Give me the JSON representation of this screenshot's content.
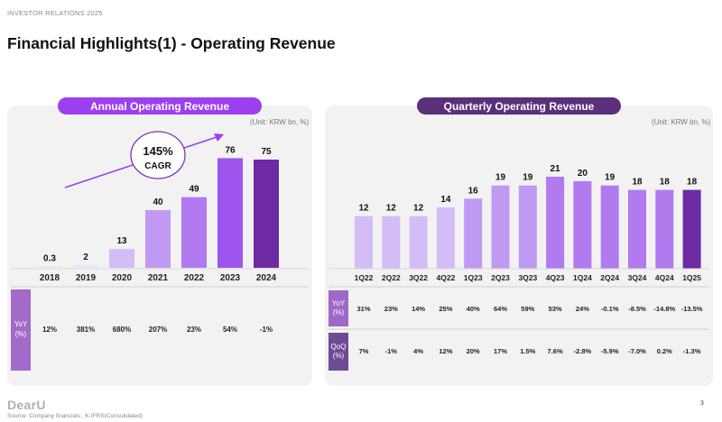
{
  "header": {
    "tag": "INVESTOR RELATIONS 2025",
    "title": "Financial Highlights(1) - Operating Revenue"
  },
  "annual": {
    "pill": "Annual Operating Revenue",
    "unit": "(Unit: KRW bn, %)",
    "cagr_value": "145%",
    "cagr_label": "CAGR",
    "row_label": "YoY\n(%)"
  },
  "quarterly": {
    "pill": "Quarterly Operating Revenue",
    "unit": "(Unit: KRW bn, %)",
    "yoy_label": "YoY\n(%)",
    "qoq_label": "QoQ\n(%)"
  },
  "footer": {
    "logo": "DearU",
    "source": "Source: Company financials , K-IFRS(Consolidated)",
    "page": "3"
  },
  "colors": {
    "light1": "#ece3fb",
    "light2": "#d4bdf7",
    "mid1": "#c09af2",
    "mid2": "#b17aef",
    "strong": "#9d55ee",
    "dark": "#6d2aa3",
    "rowlabel_left": "#a26ac9",
    "rowlabel_yoy": "#9f68c8",
    "rowlabel_qoq": "#6f4a95",
    "arrow": "#9b3ff0"
  },
  "chart_data": [
    {
      "type": "bar",
      "title": "Annual Operating Revenue",
      "unit": "KRW bn",
      "categories": [
        "2018",
        "2019",
        "2020",
        "2021",
        "2022",
        "2023",
        "2024"
      ],
      "values": [
        0.3,
        2,
        13,
        40,
        49,
        76,
        75
      ],
      "value_labels": [
        "0.3",
        "2",
        "13",
        "40",
        "49",
        "76",
        "75"
      ],
      "yoy_pct": [
        "12%",
        "381%",
        "680%",
        "207%",
        "23%",
        "54%",
        "-1%"
      ],
      "ylim": [
        0,
        80
      ]
    },
    {
      "type": "bar",
      "title": "Quarterly Operating Revenue",
      "unit": "KRW bn",
      "categories": [
        "1Q22",
        "2Q22",
        "3Q22",
        "4Q22",
        "1Q23",
        "2Q23",
        "3Q23",
        "4Q23",
        "1Q24",
        "2Q24",
        "3Q24",
        "4Q24",
        "1Q25"
      ],
      "values": [
        12,
        12,
        12,
        14,
        16,
        19,
        19,
        21,
        20,
        19,
        18,
        18,
        18
      ],
      "value_labels": [
        "12",
        "12",
        "12",
        "14",
        "16",
        "19",
        "19",
        "21",
        "20",
        "19",
        "18",
        "18",
        "18"
      ],
      "yoy_pct": [
        "31%",
        "23%",
        "14%",
        "25%",
        "40%",
        "64%",
        "59%",
        "53%",
        "24%",
        "-0.1%",
        "-8.5%",
        "-14.8%",
        "-13.5%"
      ],
      "qoq_pct": [
        "7%",
        "-1%",
        "4%",
        "12%",
        "20%",
        "17%",
        "1.5%",
        "7.6%",
        "-2.8%",
        "-5.9%",
        "-7.0%",
        "0.2%",
        "-1.3%"
      ],
      "ylim": [
        0,
        21
      ]
    }
  ]
}
